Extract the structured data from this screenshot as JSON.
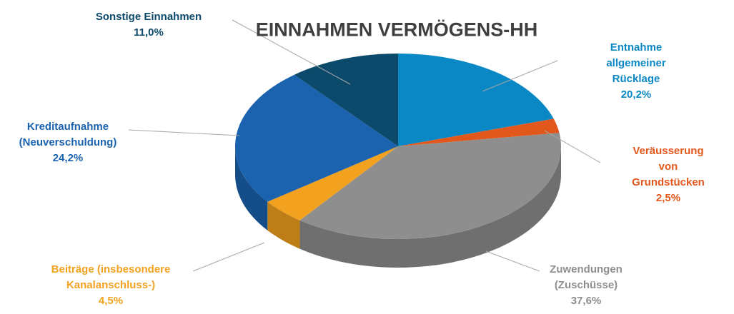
{
  "chart_data": {
    "type": "pie",
    "title": "EINNAHMEN VERMÖGENS-HH",
    "categories": [
      "Entnahme allgemeiner\nRücklage",
      "Veräusserung von\nGrundstücken",
      "Zuwendungen\n(Zuschüsse)",
      "Beiträge (insbesondere\nKanalanschluss-)",
      "Kreditaufnahme\n(Neuverschuldung)",
      "Sonstige Einnahmen"
    ],
    "values": [
      20.2,
      2.5,
      37.6,
      4.5,
      24.2,
      11.0
    ],
    "value_labels": [
      "20,2%",
      "2,5%",
      "37,6%",
      "4,5%",
      "24,2%",
      "11,0%"
    ],
    "colors": [
      "#0a88c6",
      "#e2581c",
      "#8e8e8e",
      "#f2a21f",
      "#1b63ae",
      "#0c4a6c"
    ]
  }
}
